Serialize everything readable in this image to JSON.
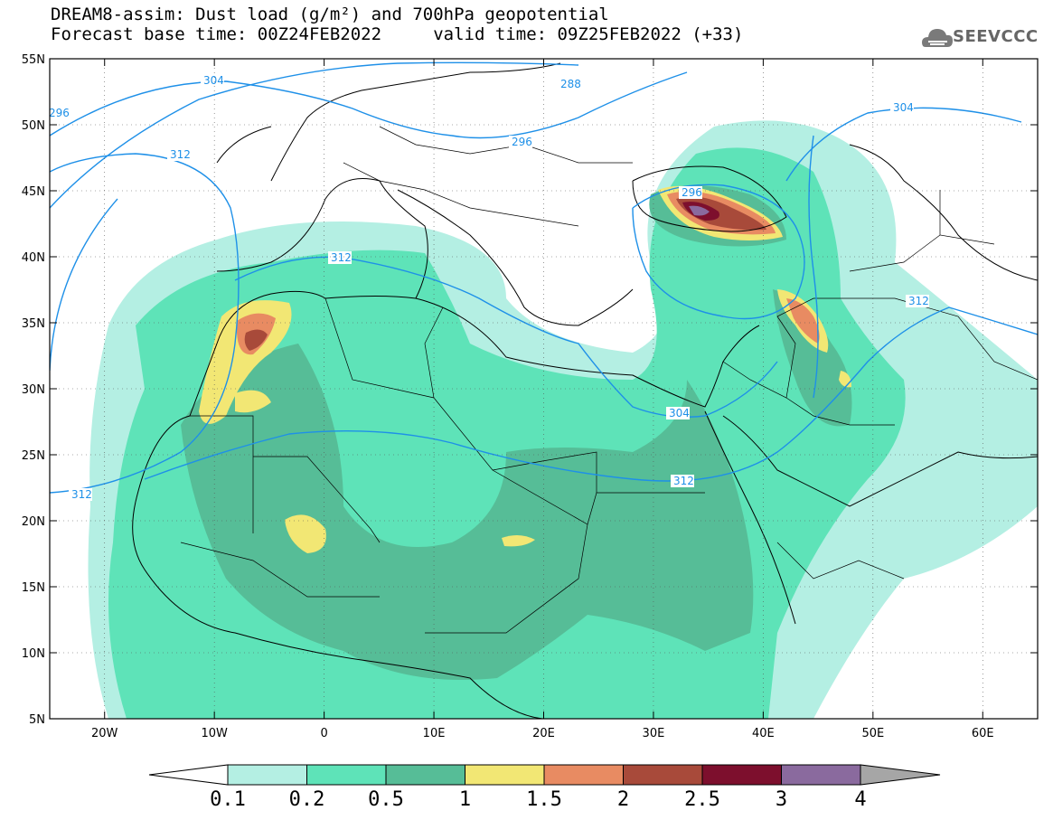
{
  "title": {
    "line1": "DREAM8-assim: Dust load (g/m²) and 700hPa geopotential",
    "line2": "Forecast base time: 00Z24FEB2022     valid time: 09Z25FEB2022 (+33)"
  },
  "logo": {
    "text": "SEEVCCC",
    "icon": "cloud-icon"
  },
  "axes": {
    "lat_labels": [
      "55N",
      "50N",
      "45N",
      "40N",
      "35N",
      "30N",
      "25N",
      "20N",
      "15N",
      "10N",
      "5N"
    ],
    "lon_labels": [
      "20W",
      "10W",
      "0",
      "10E",
      "20E",
      "30E",
      "40E",
      "50E",
      "60E"
    ]
  },
  "contours": {
    "labels": [
      "304",
      "288",
      "296",
      "296",
      "312",
      "312",
      "296",
      "312",
      "304",
      "312",
      "312",
      "304"
    ],
    "color": "#1e90e8"
  },
  "colorbar": {
    "labels": [
      "0.1",
      "0.2",
      "0.5",
      "1",
      "1.5",
      "2",
      "2.5",
      "3",
      "4"
    ],
    "colors": [
      "#b4efe3",
      "#5ee3b8",
      "#56bd97",
      "#f2e774",
      "#e88b62",
      "#a84a3a",
      "#7d0f2d",
      "#8a6a9e",
      "#a6a6a6"
    ]
  }
}
